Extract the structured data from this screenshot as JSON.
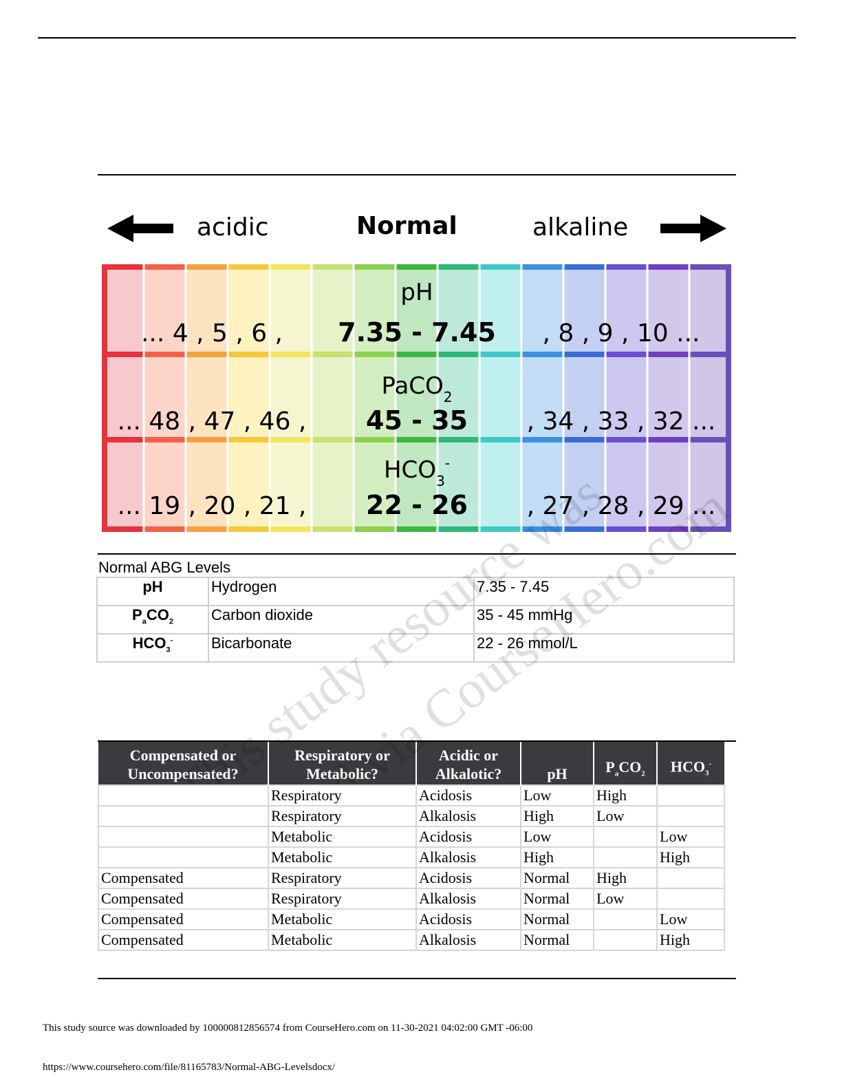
{
  "chart": {
    "left_label": "acidic",
    "center_label": "Normal",
    "right_label": "alkaline",
    "rows": [
      {
        "title": "pH",
        "title_sub": "",
        "title_sup": "",
        "left": "... 4 , 5 , 6 ,",
        "range": "7.35 - 7.45",
        "right": ", 8 , 9 , 10 ..."
      },
      {
        "title": "PaCO",
        "title_sub": "2",
        "title_sup": "",
        "left": "... 48 , 47 , 46 ,",
        "range": "45 - 35",
        "right": ", 34 , 33 , 32 ..."
      },
      {
        "title": "HCO",
        "title_sub": "3",
        "title_sup": "-",
        "left": "... 19 , 20 , 21 ,",
        "range": "22 - 26",
        "right": ", 27 , 28 , 29 ..."
      }
    ],
    "colors": {
      "stripe_tops": [
        "#e8323c",
        "#f4604a",
        "#f7a040",
        "#f7c83c",
        "#f2e660",
        "#c8e070",
        "#8cd050",
        "#3cb840",
        "#30b87a",
        "#40c8c8",
        "#3c90e0",
        "#3c6cd8",
        "#6a4fd0",
        "#7040c0",
        "#6a4fb8"
      ],
      "stripe_fills": [
        "#f7c9cc",
        "#fdd5c8",
        "#fde3c0",
        "#fdf2c0",
        "#f5f6cf",
        "#e6f3c8",
        "#d3eec0",
        "#bfe7c0",
        "#bde9da",
        "#bff0ef",
        "#c1dcf5",
        "#c3d0f2",
        "#cdc8f0",
        "#d2c8ec",
        "#d0c6e8"
      ]
    }
  },
  "abg": {
    "caption": "Normal ABG Levels",
    "rows": [
      {
        "abbr": "pH",
        "abbr_sub": "",
        "abbr_sup": "",
        "name": "Hydrogen",
        "value": "7.35 - 7.45"
      },
      {
        "abbr": "P",
        "abbr_sub": "a",
        "abbr_tail": "CO",
        "abbr_tail_sub": "2",
        "name": "Carbon dioxide",
        "value": "35 - 45 mmHg"
      },
      {
        "abbr": "HCO",
        "abbr_sub": "3",
        "abbr_sup": "-",
        "name": "Bicarbonate",
        "value": "22 - 26 mmol/L"
      }
    ]
  },
  "interp": {
    "headers": {
      "comp": "Compensated or Uncompensated?",
      "resp": "Respiratory or Metabolic?",
      "acid": "Acidic or Alkalotic?",
      "ph": "pH",
      "paco2_a": "P",
      "paco2_sub": "a",
      "paco2_b": "CO",
      "paco2_sub2": "2",
      "hco3": "HCO",
      "hco3_sub": "3",
      "hco3_sup": "-"
    },
    "rows": [
      [
        "",
        "Respiratory",
        "Acidosis",
        "Low",
        "High",
        ""
      ],
      [
        "",
        "Respiratory",
        "Alkalosis",
        "High",
        "Low",
        ""
      ],
      [
        "",
        "Metabolic",
        "Acidosis",
        "Low",
        "",
        "Low"
      ],
      [
        "",
        "Metabolic",
        "Alkalosis",
        "High",
        "",
        "High"
      ],
      [
        "Compensated",
        "Respiratory",
        "Acidosis",
        "Normal",
        "High",
        ""
      ],
      [
        "Compensated",
        "Respiratory",
        "Alkalosis",
        "Normal",
        "Low",
        ""
      ],
      [
        "Compensated",
        "Metabolic",
        "Acidosis",
        "Normal",
        "",
        "Low"
      ],
      [
        "Compensated",
        "Metabolic",
        "Alkalosis",
        "Normal",
        "",
        "High"
      ]
    ]
  },
  "watermark": {
    "line1": "This study resource was",
    "line2": "shared via CourseHero.com"
  },
  "footer": {
    "line1": "This study source was downloaded by 100000812856574 from CourseHero.com on 11-30-2021 04:02:00 GMT -06:00",
    "line2": "https://www.coursehero.com/file/81165783/Normal-ABG-Levelsdocx/"
  }
}
